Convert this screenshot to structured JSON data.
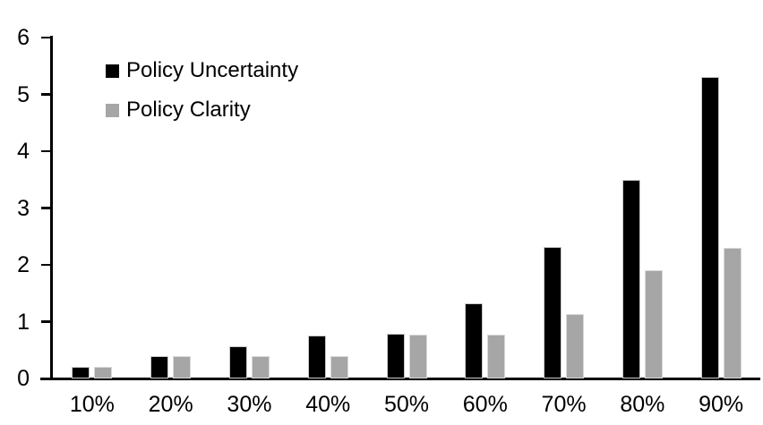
{
  "chart_data": {
    "type": "bar",
    "title": "",
    "xlabel": "",
    "ylabel": "",
    "categories": [
      "10%",
      "20%",
      "30%",
      "40%",
      "50%",
      "60%",
      "70%",
      "80%",
      "90%"
    ],
    "series": [
      {
        "name": "Policy Uncertainty",
        "color": "#000000",
        "values": [
          0.2,
          0.4,
          0.57,
          0.76,
          0.78,
          1.33,
          2.32,
          3.5,
          5.3
        ]
      },
      {
        "name": "Policy Clarity",
        "color": "#a6a6a6",
        "values": [
          0.2,
          0.39,
          0.39,
          0.4,
          0.77,
          0.77,
          1.14,
          1.9,
          2.3
        ]
      }
    ],
    "ylim": [
      0,
      6
    ],
    "yticks": [
      0,
      1,
      2,
      3,
      4,
      5,
      6
    ],
    "grid": false,
    "legend_position": "top-left",
    "axis_color": "#000000",
    "background_color": "#ffffff"
  }
}
